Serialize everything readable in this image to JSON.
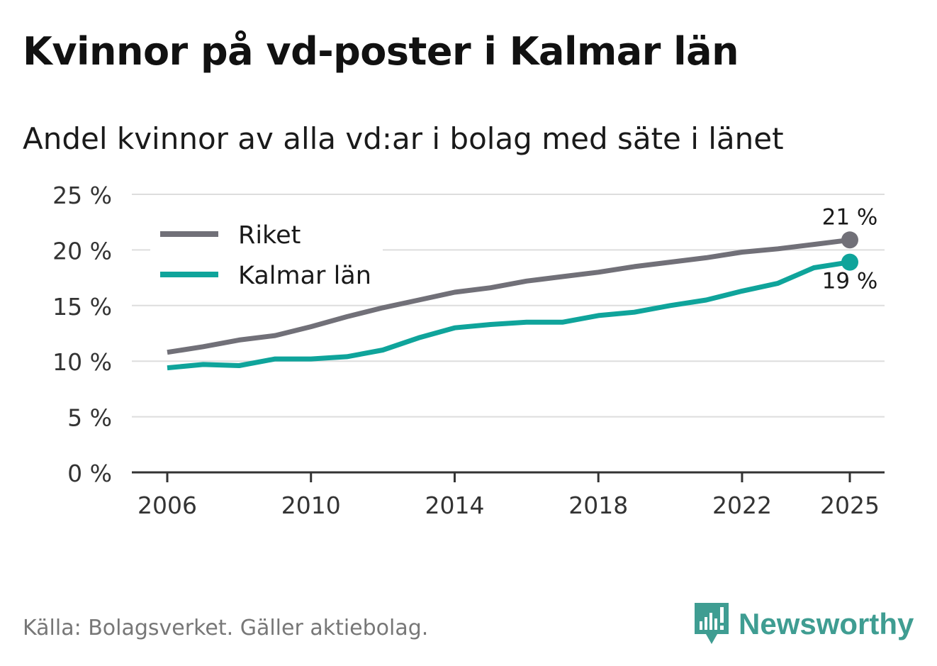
{
  "header": {
    "title": "Kvinnor på vd-poster i Kalmar län",
    "subtitle": "Andel kvinnor av alla vd:ar i bolag med säte i länet"
  },
  "footer": {
    "source": "Källa: Bolagsverket. Gäller aktiebolag.",
    "brand": "Newsworthy"
  },
  "colors": {
    "riket": "#717078",
    "kalmar": "#0fa49b",
    "grid": "#dddddd",
    "axis": "#333333",
    "brand": "#3f9d92"
  },
  "chart_data": {
    "type": "line",
    "title": "Kvinnor på vd-poster i Kalmar län",
    "subtitle": "Andel kvinnor av alla vd:ar i bolag med säte i länet",
    "xlabel": "",
    "ylabel": "",
    "x": [
      2006,
      2007,
      2008,
      2009,
      2010,
      2011,
      2012,
      2013,
      2014,
      2015,
      2016,
      2017,
      2018,
      2019,
      2020,
      2021,
      2022,
      2023,
      2024,
      2025
    ],
    "xlim": [
      2006,
      2025
    ],
    "ylim": [
      0,
      25
    ],
    "x_ticks": [
      2006,
      2010,
      2014,
      2018,
      2022,
      2025
    ],
    "x_tick_labels": [
      "2006",
      "2010",
      "2014",
      "2018",
      "2022",
      "2025"
    ],
    "y_ticks": [
      0,
      5,
      10,
      15,
      20,
      25
    ],
    "y_tick_labels": [
      "0 %",
      "5 %",
      "10 %",
      "15 %",
      "20 %",
      "25 %"
    ],
    "grid": true,
    "legend_position": "top-left",
    "series": [
      {
        "name": "Riket",
        "color": "#717078",
        "values": [
          10.8,
          11.3,
          11.9,
          12.3,
          13.1,
          14.0,
          14.8,
          15.5,
          16.2,
          16.6,
          17.2,
          17.6,
          18.0,
          18.5,
          18.9,
          19.3,
          19.8,
          20.1,
          20.5,
          20.9
        ],
        "end_label": "21 %",
        "end_label_position": "above"
      },
      {
        "name": "Kalmar län",
        "color": "#0fa49b",
        "values": [
          9.4,
          9.7,
          9.6,
          10.2,
          10.2,
          10.4,
          11.0,
          12.1,
          13.0,
          13.3,
          13.5,
          13.5,
          14.1,
          14.4,
          15.0,
          15.5,
          16.3,
          17.0,
          18.4,
          18.9
        ],
        "end_label": "19 %",
        "end_label_position": "below"
      }
    ]
  }
}
